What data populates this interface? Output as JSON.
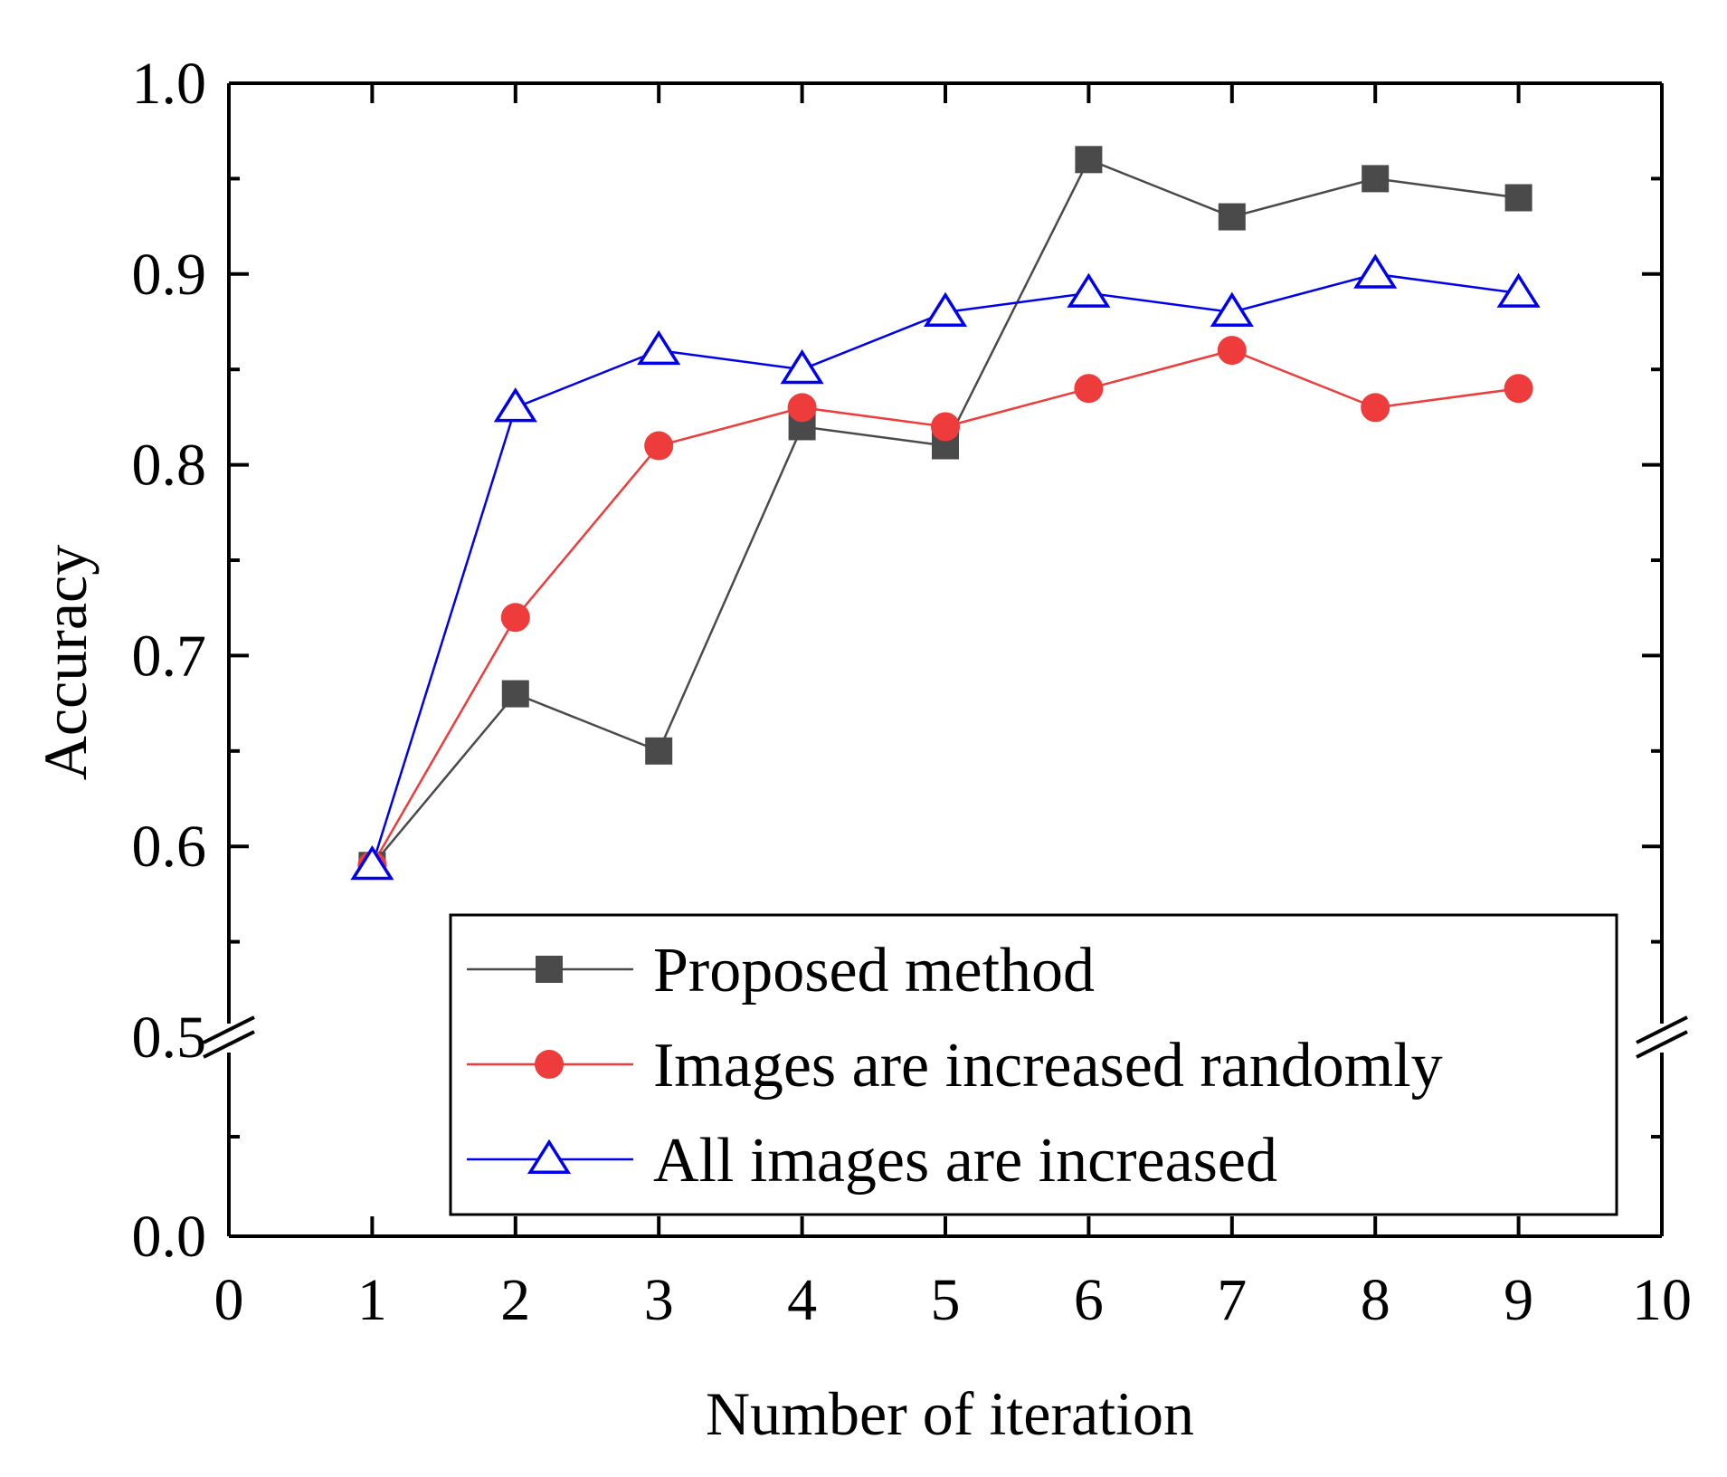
{
  "chart_data": {
    "type": "line",
    "title": "",
    "xlabel": "Number of iteration",
    "ylabel": "Accuracy",
    "xlim": [
      0,
      10
    ],
    "x_ticks": [
      "0",
      "1",
      "2",
      "3",
      "4",
      "5",
      "6",
      "7",
      "8",
      "9",
      "10"
    ],
    "y_break": {
      "lower_range": [
        0.0,
        0.5
      ],
      "upper_range": [
        0.5,
        1.0
      ]
    },
    "y_ticks": [
      "0.0",
      "0.5",
      "0.6",
      "0.7",
      "0.8",
      "0.9",
      "1.0"
    ],
    "legend_position": "bottom-right",
    "series": [
      {
        "name": "Proposed method",
        "marker": "square",
        "color": "#4a4a4a",
        "x": [
          1,
          2,
          3,
          4,
          5,
          6,
          7,
          8,
          9
        ],
        "values": [
          0.59,
          0.68,
          0.65,
          0.82,
          0.81,
          0.96,
          0.93,
          0.95,
          0.94
        ]
      },
      {
        "name": "Images are increased randomly",
        "marker": "circle",
        "color": "#ee3b3b",
        "x": [
          1,
          2,
          3,
          4,
          5,
          6,
          7,
          8,
          9
        ],
        "values": [
          0.59,
          0.72,
          0.81,
          0.83,
          0.82,
          0.84,
          0.86,
          0.83,
          0.84
        ]
      },
      {
        "name": "All images are increased",
        "marker": "open-triangle",
        "color": "#0000ee",
        "x": [
          1,
          2,
          3,
          4,
          5,
          6,
          7,
          8,
          9
        ],
        "values": [
          0.59,
          0.83,
          0.86,
          0.85,
          0.88,
          0.89,
          0.88,
          0.9,
          0.89
        ]
      }
    ]
  }
}
